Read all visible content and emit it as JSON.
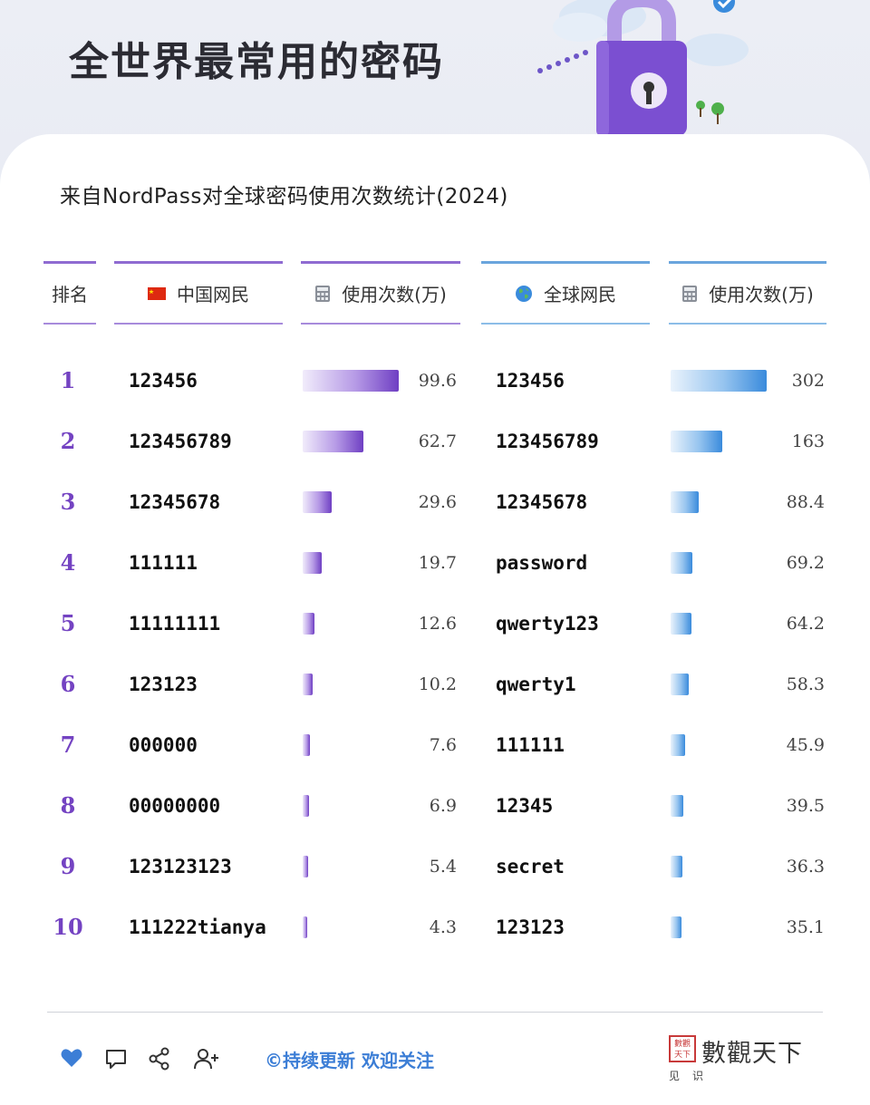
{
  "hero": {
    "title": "全世界最常用的密码",
    "colors": {
      "lock": "#7b4fd1",
      "cloud": "#dbe7f5",
      "check": "#3a8bdc"
    }
  },
  "subtitle": "来自NordPass对全球密码使用次数统计(2024)",
  "table": {
    "headers": {
      "rank": "排名",
      "cn": "中国网民",
      "cn_count": "使用次数(万)",
      "global": "全球网民",
      "global_count": "使用次数(万)"
    },
    "icons": {
      "cn": "china-flag-icon",
      "global": "globe-icon",
      "count": "calculator-icon"
    }
  },
  "chart_data": {
    "type": "bar",
    "categories": [
      "1",
      "2",
      "3",
      "4",
      "5",
      "6",
      "7",
      "8",
      "9",
      "10"
    ],
    "series": [
      {
        "name": "中国网民",
        "labels": [
          "123456",
          "123456789",
          "12345678",
          "111111",
          "11111111",
          "123123",
          "000000",
          "00000000",
          "123123123",
          "111222tianya"
        ],
        "values": [
          99.6,
          62.7,
          29.6,
          19.7,
          12.6,
          10.2,
          7.6,
          6.9,
          5.4,
          4.3
        ],
        "color": "#6f3fc3"
      },
      {
        "name": "全球网民",
        "labels": [
          "123456",
          "123456789",
          "12345678",
          "password",
          "qwerty123",
          "qwerty1",
          "111111",
          "12345",
          "secret",
          "123123"
        ],
        "values": [
          302,
          163,
          88.4,
          69.2,
          64.2,
          58.3,
          45.9,
          39.5,
          36.3,
          35.1
        ],
        "color": "#3a8bdc"
      }
    ],
    "ylabel": "使用次数(万)"
  },
  "footer": {
    "text": "©持续更新 欢迎关注",
    "brand_name": "數觀天下",
    "brand_sub": "见识",
    "seal_text": "數觀天下",
    "icons": [
      "heart-icon",
      "comment-icon",
      "share-icon",
      "add-user-icon"
    ],
    "accent": "#3c7ed6"
  }
}
